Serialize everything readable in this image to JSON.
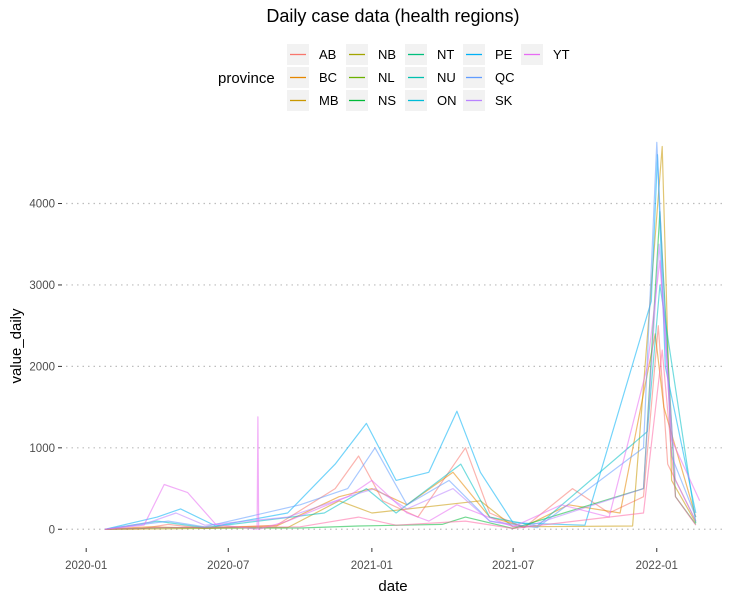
{
  "chart_data": {
    "type": "line",
    "title": "Daily case data (health regions)",
    "xlabel": "date",
    "ylabel": "value_daily",
    "x_range": [
      "2019-12-01",
      "2022-04-01"
    ],
    "ylim": [
      -230,
      4780
    ],
    "x_ticks": [
      {
        "date": "2020-01-01",
        "label": "2020-01"
      },
      {
        "date": "2020-07-01",
        "label": "2020-07"
      },
      {
        "date": "2021-01-01",
        "label": "2021-01"
      },
      {
        "date": "2021-07-01",
        "label": "2021-07"
      },
      {
        "date": "2022-01-01",
        "label": "2022-01"
      }
    ],
    "y_ticks": [
      0,
      1000,
      2000,
      3000,
      4000
    ],
    "grid": "horizontal dotted, major y only",
    "legend": {
      "title": "province",
      "placement": "top",
      "entries": [
        {
          "name": "AB",
          "color": "#F8766D"
        },
        {
          "name": "BC",
          "color": "#E58700"
        },
        {
          "name": "MB",
          "color": "#C99800"
        },
        {
          "name": "NB",
          "color": "#A3A500"
        },
        {
          "name": "NL",
          "color": "#6BB100"
        },
        {
          "name": "NS",
          "color": "#00BA38"
        },
        {
          "name": "NT",
          "color": "#00BF7D"
        },
        {
          "name": "NU",
          "color": "#00C0AF"
        },
        {
          "name": "ON",
          "color": "#00BCD8"
        },
        {
          "name": "PE",
          "color": "#00B0F6"
        },
        {
          "name": "QC",
          "color": "#619CFF"
        },
        {
          "name": "SK",
          "color": "#B983FF"
        },
        {
          "name": "YT",
          "color": "#E76BF3"
        }
      ]
    },
    "series": [
      {
        "color": "#F8766D",
        "points": [
          [
            "2020-01-25",
            0
          ],
          [
            "2020-03-10",
            5
          ],
          [
            "2020-04-15",
            60
          ],
          [
            "2020-06-01",
            10
          ],
          [
            "2020-09-01",
            50
          ],
          [
            "2020-11-15",
            500
          ],
          [
            "2020-12-15",
            900
          ],
          [
            "2021-01-15",
            350
          ],
          [
            "2021-03-01",
            150
          ],
          [
            "2021-05-01",
            1000
          ],
          [
            "2021-06-01",
            200
          ],
          [
            "2021-07-15",
            20
          ],
          [
            "2021-09-15",
            500
          ],
          [
            "2021-11-01",
            200
          ],
          [
            "2021-12-15",
            400
          ],
          [
            "2022-01-03",
            2500
          ],
          [
            "2022-01-15",
            800
          ],
          [
            "2022-02-20",
            100
          ]
        ]
      },
      {
        "color": "#E58700",
        "points": [
          [
            "2020-01-25",
            0
          ],
          [
            "2020-03-20",
            30
          ],
          [
            "2020-05-01",
            20
          ],
          [
            "2020-09-01",
            40
          ],
          [
            "2020-11-20",
            400
          ],
          [
            "2021-01-01",
            500
          ],
          [
            "2021-02-15",
            300
          ],
          [
            "2021-04-15",
            700
          ],
          [
            "2021-06-01",
            150
          ],
          [
            "2021-07-15",
            30
          ],
          [
            "2021-09-10",
            300
          ],
          [
            "2021-11-15",
            200
          ],
          [
            "2021-12-30",
            2400
          ],
          [
            "2022-01-10",
            1500
          ],
          [
            "2022-02-20",
            150
          ]
        ]
      },
      {
        "color": "#C99800",
        "points": [
          [
            "2020-01-25",
            0
          ],
          [
            "2020-04-01",
            5
          ],
          [
            "2020-09-15",
            20
          ],
          [
            "2020-11-20",
            350
          ],
          [
            "2021-01-01",
            200
          ],
          [
            "2021-05-20",
            350
          ],
          [
            "2021-07-01",
            30
          ],
          [
            "2021-12-01",
            40
          ],
          [
            "2022-01-08",
            4700
          ],
          [
            "2022-01-20",
            600
          ],
          [
            "2022-02-20",
            80
          ]
        ]
      },
      {
        "color": "#00BA38",
        "points": [
          [
            "2020-01-25",
            0
          ],
          [
            "2020-04-15",
            20
          ],
          [
            "2020-10-01",
            15
          ],
          [
            "2020-12-15",
            40
          ],
          [
            "2021-04-01",
            60
          ],
          [
            "2021-05-01",
            150
          ],
          [
            "2021-07-01",
            10
          ],
          [
            "2021-12-15",
            500
          ],
          [
            "2022-01-05",
            3900
          ],
          [
            "2022-01-25",
            400
          ],
          [
            "2022-02-20",
            60
          ]
        ]
      },
      {
        "color": "#00BFC4",
        "points": [
          [
            "2020-01-25",
            0
          ],
          [
            "2020-04-01",
            100
          ],
          [
            "2020-06-01",
            20
          ],
          [
            "2020-11-01",
            200
          ],
          [
            "2020-12-25",
            500
          ],
          [
            "2021-02-01",
            200
          ],
          [
            "2021-04-25",
            800
          ],
          [
            "2021-06-01",
            150
          ],
          [
            "2021-08-01",
            40
          ],
          [
            "2021-12-20",
            1200
          ],
          [
            "2022-01-05",
            3000
          ],
          [
            "2022-02-20",
            80
          ]
        ]
      },
      {
        "color": "#00B0F6",
        "points": [
          [
            "2020-01-25",
            0
          ],
          [
            "2020-04-01",
            150
          ],
          [
            "2020-05-01",
            250
          ],
          [
            "2020-06-15",
            40
          ],
          [
            "2020-09-15",
            200
          ],
          [
            "2020-11-15",
            800
          ],
          [
            "2020-12-25",
            1300
          ],
          [
            "2021-02-01",
            600
          ],
          [
            "2021-03-15",
            700
          ],
          [
            "2021-04-20",
            1450
          ],
          [
            "2021-05-20",
            700
          ],
          [
            "2021-07-01",
            80
          ],
          [
            "2021-10-01",
            50
          ],
          [
            "2021-12-25",
            2800
          ],
          [
            "2022-01-02",
            4600
          ],
          [
            "2022-01-12",
            2000
          ],
          [
            "2022-02-20",
            200
          ]
        ]
      },
      {
        "color": "#619CFF",
        "points": [
          [
            "2020-01-25",
            0
          ],
          [
            "2020-04-15",
            100
          ],
          [
            "2020-06-01",
            30
          ],
          [
            "2020-10-01",
            300
          ],
          [
            "2020-12-01",
            500
          ],
          [
            "2021-01-05",
            1000
          ],
          [
            "2021-02-15",
            300
          ],
          [
            "2021-04-10",
            600
          ],
          [
            "2021-06-01",
            100
          ],
          [
            "2021-08-01",
            20
          ],
          [
            "2021-12-15",
            1000
          ],
          [
            "2022-01-01",
            4750
          ],
          [
            "2022-01-20",
            900
          ],
          [
            "2022-02-20",
            150
          ]
        ]
      },
      {
        "color": "#B983FF",
        "points": [
          [
            "2020-01-25",
            0
          ],
          [
            "2020-03-20",
            80
          ],
          [
            "2020-04-25",
            200
          ],
          [
            "2020-06-01",
            50
          ],
          [
            "2020-09-15",
            150
          ],
          [
            "2020-12-01",
            400
          ],
          [
            "2021-01-05",
            500
          ],
          [
            "2021-02-15",
            250
          ],
          [
            "2021-04-15",
            500
          ],
          [
            "2021-06-01",
            100
          ],
          [
            "2021-07-15",
            20
          ],
          [
            "2021-12-15",
            500
          ],
          [
            "2022-01-04",
            3500
          ],
          [
            "2022-01-25",
            600
          ],
          [
            "2022-02-20",
            100
          ]
        ]
      },
      {
        "color": "#E76BF3",
        "points": [
          [
            "2020-01-25",
            0
          ],
          [
            "2020-03-15",
            50
          ],
          [
            "2020-04-10",
            550
          ],
          [
            "2020-04-25",
            500
          ],
          [
            "2020-05-10",
            450
          ],
          [
            "2020-06-15",
            60
          ],
          [
            "2020-08-07",
            0
          ],
          [
            "2020-08-08",
            1380
          ],
          [
            "2020-08-09",
            0
          ],
          [
            "2020-09-15",
            100
          ],
          [
            "2020-12-01",
            400
          ],
          [
            "2021-01-01",
            600
          ],
          [
            "2021-02-15",
            200
          ],
          [
            "2021-03-15",
            100
          ],
          [
            "2021-04-20",
            300
          ],
          [
            "2021-07-01",
            30
          ],
          [
            "2021-09-01",
            300
          ],
          [
            "2021-11-01",
            150
          ],
          [
            "2021-12-20",
            2000
          ],
          [
            "2022-01-05",
            3300
          ],
          [
            "2022-01-20",
            1100
          ],
          [
            "2022-02-25",
            350
          ]
        ]
      },
      {
        "color": "#FF67A4",
        "points": [
          [
            "2020-01-25",
            0
          ],
          [
            "2020-04-01",
            20
          ],
          [
            "2020-10-01",
            30
          ],
          [
            "2020-12-15",
            150
          ],
          [
            "2021-02-01",
            50
          ],
          [
            "2021-05-01",
            100
          ],
          [
            "2021-07-01",
            10
          ],
          [
            "2021-12-15",
            200
          ],
          [
            "2022-01-08",
            2200
          ],
          [
            "2022-01-25",
            400
          ],
          [
            "2022-02-20",
            50
          ]
        ]
      }
    ]
  }
}
